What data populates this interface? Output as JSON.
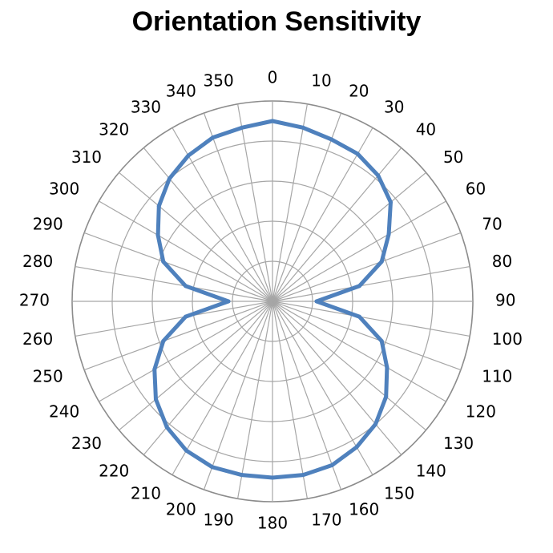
{
  "chart_data": {
    "type": "polar-line",
    "title": "Orientation Sensitivity",
    "angular_unit": "degrees",
    "direction": "clockwise",
    "zero_location": "top",
    "angular_ticks": [
      "0",
      "10",
      "20",
      "30",
      "40",
      "50",
      "60",
      "70",
      "80",
      "90",
      "100",
      "110",
      "120",
      "130",
      "140",
      "150",
      "160",
      "170",
      "180",
      "190",
      "200",
      "210",
      "220",
      "230",
      "240",
      "250",
      "260",
      "270",
      "280",
      "290",
      "300",
      "310",
      "320",
      "330",
      "340",
      "350"
    ],
    "radial_gridlines": 5,
    "radial_range": [
      0,
      1
    ],
    "grid": true,
    "series": [
      {
        "color": "#4f81bd",
        "theta": [
          0,
          10,
          20,
          30,
          40,
          50,
          60,
          70,
          80,
          90,
          100,
          110,
          120,
          130,
          140,
          150,
          160,
          170,
          180,
          190,
          200,
          210,
          220,
          230,
          240,
          250,
          260,
          270,
          280,
          290,
          300,
          310,
          320,
          330,
          340,
          350
        ],
        "r": [
          0.9,
          0.88,
          0.86,
          0.85,
          0.82,
          0.77,
          0.67,
          0.58,
          0.44,
          0.22,
          0.44,
          0.58,
          0.66,
          0.74,
          0.8,
          0.84,
          0.87,
          0.88,
          0.88,
          0.88,
          0.88,
          0.86,
          0.82,
          0.76,
          0.68,
          0.58,
          0.44,
          0.22,
          0.44,
          0.58,
          0.66,
          0.74,
          0.8,
          0.84,
          0.87,
          0.88
        ]
      }
    ]
  }
}
